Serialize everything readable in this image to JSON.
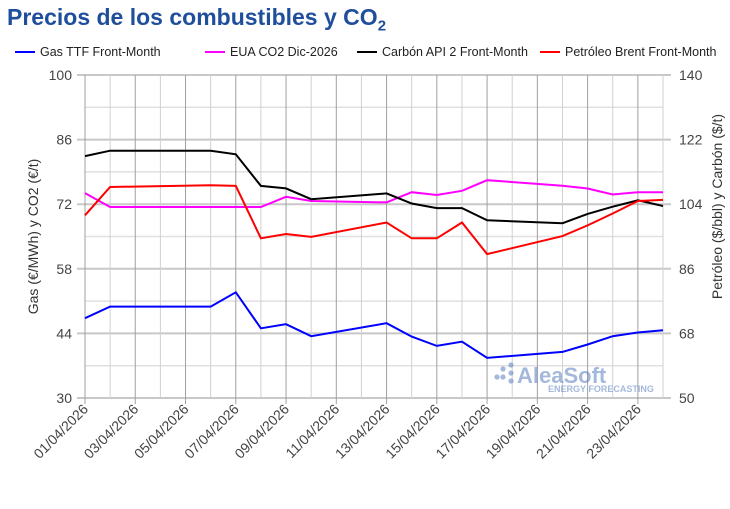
{
  "title": {
    "main": "Precios de los combustibles y CO",
    "sub": "2"
  },
  "watermark": {
    "brand": "AleaSoft",
    "tagline": "ENERGY FORECASTING"
  },
  "chart_data": {
    "type": "line",
    "title": "Precios de los combustibles y CO2",
    "ylabel_left": "Gas (€/MWh) y CO2 (€/t)",
    "ylabel_right": "Petróleo ($/bbl) y Carbón ($/t)",
    "ylim_left": [
      30,
      100
    ],
    "ylim_right": [
      50,
      140
    ],
    "yticks_left": [
      "30",
      "44",
      "58",
      "72",
      "86",
      "100"
    ],
    "yticks_right": [
      "50",
      "68",
      "86",
      "104",
      "122",
      "140"
    ],
    "xlim_day": [
      1,
      24
    ],
    "xtick_labels": [
      "01/04/2026",
      "03/04/2026",
      "05/04/2026",
      "07/04/2026",
      "09/04/2026",
      "11/04/2026",
      "13/04/2026",
      "15/04/2026",
      "17/04/2026",
      "19/04/2026",
      "21/04/2026",
      "23/04/2026"
    ],
    "legend_position": "top",
    "grid": true,
    "x_day": [
      1,
      2,
      6,
      7,
      8,
      9,
      10,
      13,
      14,
      15,
      16,
      17,
      20,
      21,
      22,
      23,
      24
    ],
    "series": [
      {
        "name": "Gas TTF Front-Month",
        "axis": "left",
        "color": "#0000ff",
        "values": [
          47.3,
          49.8,
          49.8,
          52.9,
          45.1,
          46.0,
          43.4,
          46.2,
          43.3,
          41.3,
          42.2,
          38.7,
          40.0,
          41.6,
          43.4,
          44.2,
          44.7
        ]
      },
      {
        "name": "EUA CO2 Dic-2026",
        "axis": "left",
        "color": "#ff00ff",
        "values": [
          74.4,
          71.4,
          71.4,
          71.4,
          71.4,
          73.6,
          72.7,
          72.4,
          74.6,
          74.0,
          74.9,
          77.2,
          76.0,
          75.4,
          74.1,
          74.6,
          74.6
        ]
      },
      {
        "name": "Carbón API 2 Front-Month",
        "axis": "right",
        "color": "#000000",
        "values": [
          117.4,
          118.9,
          118.9,
          117.9,
          109.1,
          108.4,
          105.4,
          107.0,
          104.2,
          102.9,
          102.9,
          99.5,
          98.7,
          101.3,
          103.3,
          105.1,
          103.5
        ]
      },
      {
        "name": "Petróleo Brent Front-Month",
        "axis": "right",
        "color": "#ff0000",
        "values": [
          100.9,
          108.8,
          109.3,
          109.1,
          94.5,
          95.7,
          94.9,
          98.9,
          94.5,
          94.5,
          98.9,
          90.1,
          95.1,
          98.1,
          101.4,
          104.9,
          105.2
        ]
      }
    ]
  }
}
